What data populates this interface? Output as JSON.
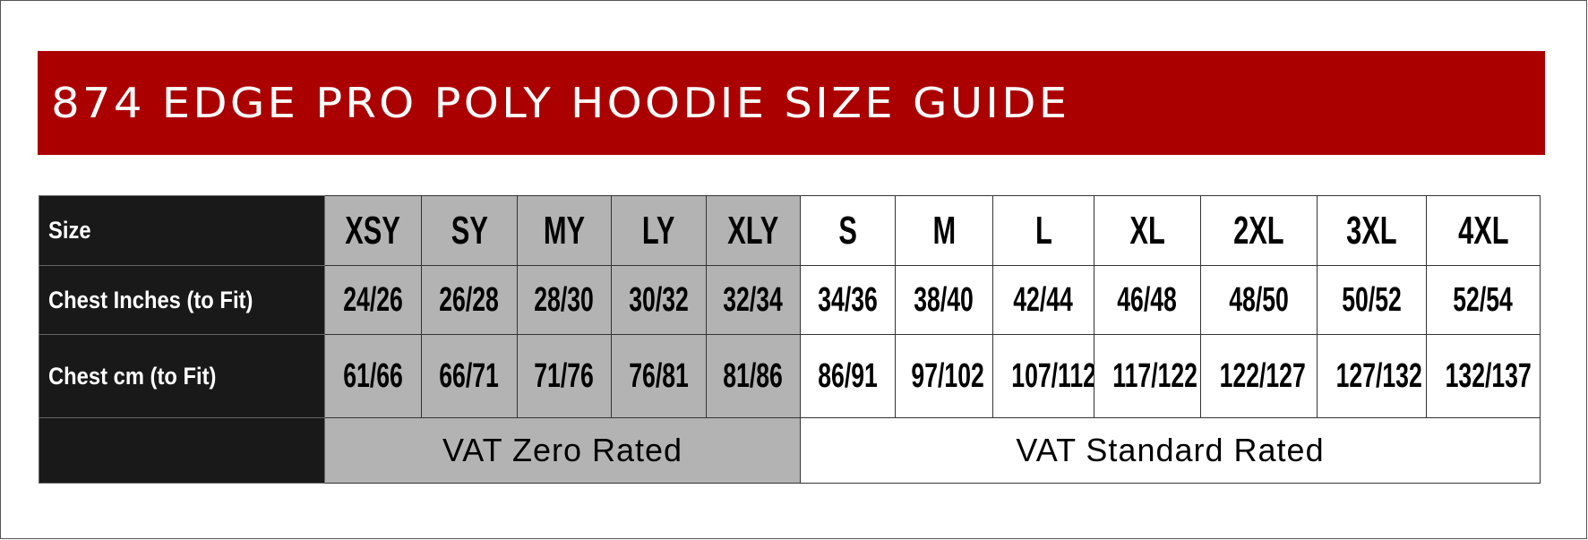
{
  "title": "874 EDGE PRO POLY HOODIE SIZE GUIDE",
  "colors": {
    "banner": "#ab0000",
    "label_column": "#191919",
    "zero_rated": "#b3b3b3",
    "standard_rated": "#ffffff"
  },
  "table": {
    "row_labels": [
      "Size",
      "Chest Inches (to Fit)",
      "Chest cm (to Fit)",
      ""
    ],
    "sizes": [
      "XSY",
      "SY",
      "MY",
      "LY",
      "XLY",
      "S",
      "M",
      "L",
      "XL",
      "2XL",
      "3XL",
      "4XL"
    ],
    "chest_inches": [
      "24/26",
      "26/28",
      "28/30",
      "30/32",
      "32/34",
      "34/36",
      "38/40",
      "42/44",
      "46/48",
      "48/50",
      "50/52",
      "52/54"
    ],
    "chest_cm": [
      "61/66",
      "66/71",
      "71/76",
      "76/81",
      "81/86",
      "86/91",
      "97/102",
      "107/112",
      "117/122",
      "122/127",
      "127/132",
      "132/137"
    ],
    "vat_zero": "VAT Zero Rated",
    "vat_standard": "VAT Standard Rated"
  }
}
